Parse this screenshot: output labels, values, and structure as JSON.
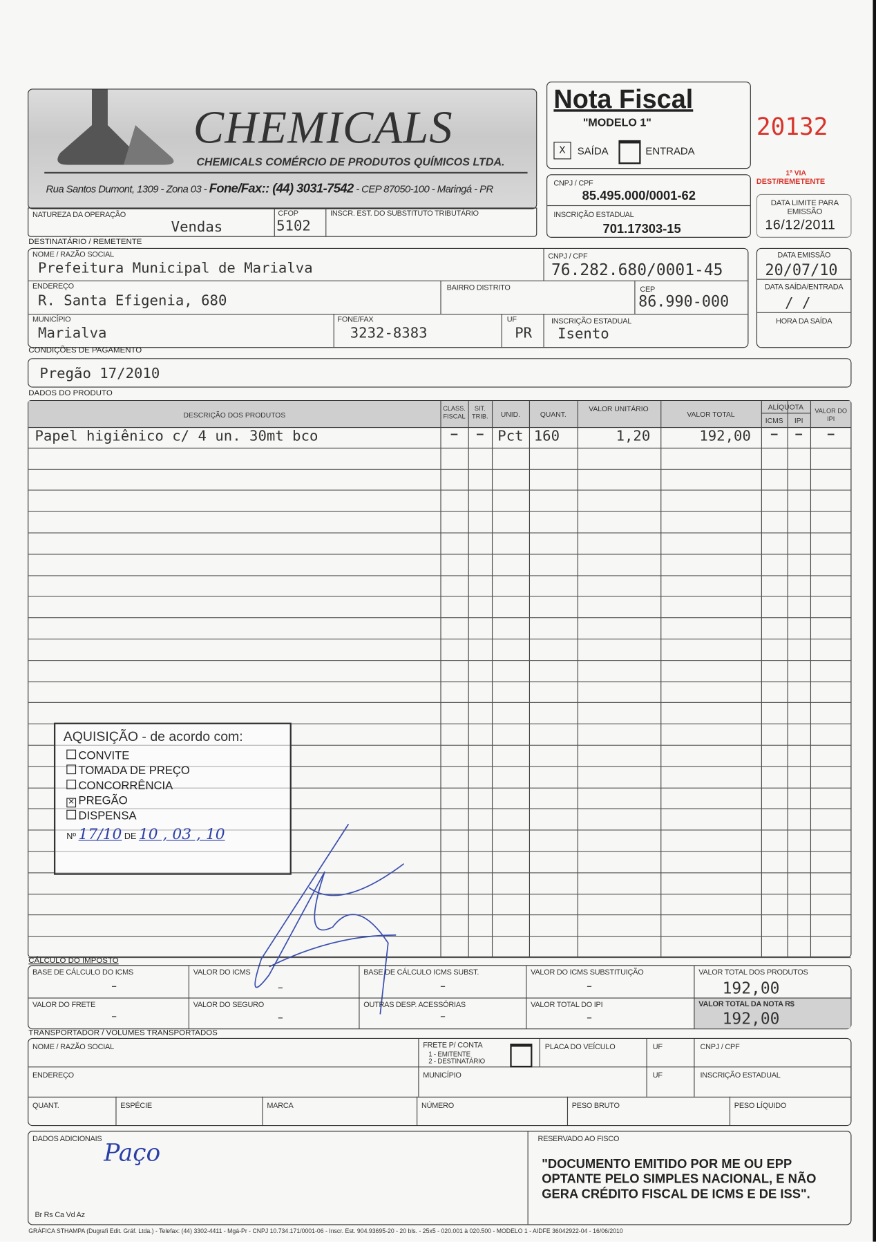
{
  "issuer": {
    "company_logo_text": "CHEMICALS",
    "company_name": "CHEMICALS COMÉRCIO DE PRODUTOS QUÍMICOS LTDA.",
    "address": "Rua Santos Dumont, 1309 - Zona 03 - ",
    "phone": "Fone/Fax:: (44) 3031-7542",
    "address_tail": " - CEP 87050-100 - Maringá - PR"
  },
  "header": {
    "title": "Nota Fiscal",
    "model": "\"MODELO 1\"",
    "saida_label": "SAÍDA",
    "saida_mark": "X",
    "entrada_label": "ENTRADA",
    "number": "20132",
    "via": "1ª VIA",
    "via_dest": "DEST/REMETENTE",
    "cnpj_label": "CNPJ / CPF",
    "cnpj": "85.495.000/0001-62",
    "ie_label": "INSCRIÇÃO ESTADUAL",
    "ie": "701.17303-15",
    "limit_label": "DATA LIMITE PARA EMISSÃO",
    "limit_date": "16/12/2011",
    "accent_color": "#d9342b"
  },
  "operation": {
    "nature_label": "NATUREZA DA OPERAÇÃO",
    "nature": "Vendas",
    "cfop_label": "CFOP",
    "cfop": "5102",
    "subst_label": "INSCR. EST. DO SUBSTITUTO TRIBUTÁRIO"
  },
  "recipient": {
    "section": "DESTINATÁRIO / REMETENTE",
    "name_label": "NOME / RAZÃO SOCIAL",
    "name": "Prefeitura Municipal de Marialva",
    "cnpj_label": "CNPJ / CPF",
    "cnpj": "76.282.680/0001-45",
    "address_label": "ENDEREÇO",
    "address": "R. Santa Efigenia, 680",
    "district_label": "BAIRRO DISTRITO",
    "cep_label": "CEP",
    "cep": "86.990-000",
    "city_label": "MUNICÍPIO",
    "city": "Marialva",
    "phone_label": "FONE/FAX",
    "phone": "3232-8383",
    "uf_label": "UF",
    "uf": "PR",
    "ie_label": "INSCRIÇÃO ESTADUAL",
    "ie": "Isento",
    "issue_date_label": "DATA EMISSÃO",
    "issue_date": "20/07/10",
    "exit_date_label": "DATA SAÍDA/ENTRADA",
    "exit_date": "/   /",
    "exit_time_label": "HORA DA SAÍDA"
  },
  "payment": {
    "section": "CONDIÇÕES DE PAGAMENTO",
    "value": "Pregão 17/2010"
  },
  "products": {
    "section": "DADOS DO PRODUTO",
    "headers": {
      "desc": "DESCRIÇÃO DOS PRODUTOS",
      "class": "CLASS. FISCAL",
      "sit": "SIT. TRIB.",
      "unit": "UNID.",
      "qty": "QUANT.",
      "unit_value": "VALOR UNITÁRIO",
      "total": "VALOR TOTAL",
      "aliquota": "ALÍQUOTA",
      "icms": "ICMS",
      "ipi": "IPI",
      "ipi_value": "VALOR DO IPI"
    },
    "rows": [
      {
        "desc": "Papel higiênico c/ 4 un. 30mt bco",
        "class": "–",
        "sit": "–",
        "unit": "Pct",
        "qty": "160",
        "unit_value": "1,20",
        "total": "192,00",
        "icms": "–",
        "ipi": "–",
        "ipi_value": "–"
      }
    ]
  },
  "stamp": {
    "title": "AQUISIÇÃO - de acordo com:",
    "options": [
      {
        "label": "CONVITE",
        "checked": false
      },
      {
        "label": "TOMADA DE PREÇO",
        "checked": false
      },
      {
        "label": "CONCORRÊNCIA",
        "checked": false
      },
      {
        "label": "PREGÃO",
        "checked": true
      },
      {
        "label": "DISPENSA",
        "checked": false
      }
    ],
    "number_prefix": "Nº",
    "number": "17/10",
    "date_prefix": "DE",
    "date": "10 , 03 , 10"
  },
  "tax": {
    "section": "CÁLCULO DO IMPOSTO",
    "base_icms_label": "BASE DE CÁLCULO DO ICMS",
    "base_icms": "–",
    "icms_label": "VALOR DO ICMS",
    "icms": "–",
    "base_subst_label": "BASE DE CÁLCULO ICMS SUBST.",
    "base_subst": "–",
    "icms_subst_label": "VALOR DO ICMS SUBSTITUIÇÃO",
    "icms_subst": "–",
    "total_products_label": "VALOR TOTAL DOS PRODUTOS",
    "total_products": "192,00",
    "freight_label": "VALOR DO FRETE",
    "freight": "–",
    "insurance_label": "VALOR DO SEGURO",
    "insurance": "–",
    "other_label": "OUTRAS DESP. ACESSÓRIAS",
    "other": "–",
    "ipi_total_label": "VALOR TOTAL DO IPI",
    "ipi_total": "–",
    "total_note_label": "VALOR TOTAL DA NOTA R$",
    "total_note": "192,00"
  },
  "transport": {
    "section": "TRANSPORTADOR / VOLUMES TRANSPORTADOS",
    "name_label": "NOME / RAZÃO SOCIAL",
    "freight_label": "FRETE P/ CONTA",
    "freight_opt1": "1 - EMITENTE",
    "freight_opt2": "2 - DESTINATÁRIO",
    "plate_label": "PLACA DO VEÍCULO",
    "uf_label": "UF",
    "cnpj_label": "CNPJ / CPF",
    "address_label": "ENDEREÇO",
    "city_label": "MUNICÍPIO",
    "ie_label": "INSCRIÇÃO ESTADUAL",
    "qty_label": "QUANT.",
    "species_label": "ESPÉCIE",
    "brand_label": "MARCA",
    "number_label": "NÚMERO",
    "gross_label": "PESO BRUTO",
    "net_label": "PESO LÍQUIDO"
  },
  "additional": {
    "label": "DADOS ADICIONAIS",
    "handwritten": "Paço",
    "colors": "Br Rs Ca Vd Az",
    "reserved_label": "RESERVADO AO FISCO",
    "notice": "\"DOCUMENTO EMITIDO POR ME OU EPP OPTANTE PELO SIMPLES NACIONAL, E NÃO GERA CRÉDITO FISCAL DE ICMS E DE ISS\"."
  },
  "footer": "GRÁFICA STHAMPA (Dugrafi Edit. Gráf. Ltda.) - Telefax: (44) 3302-4411 - Mgá-Pr - CNPJ 10.734.171/0001-06 - Inscr. Est. 904.93695-20 - 20 bls. - 25x5 - 020.001 à 020.500 - MODELO 1 - AIDFE 36042922-04 - 16/06/2010"
}
